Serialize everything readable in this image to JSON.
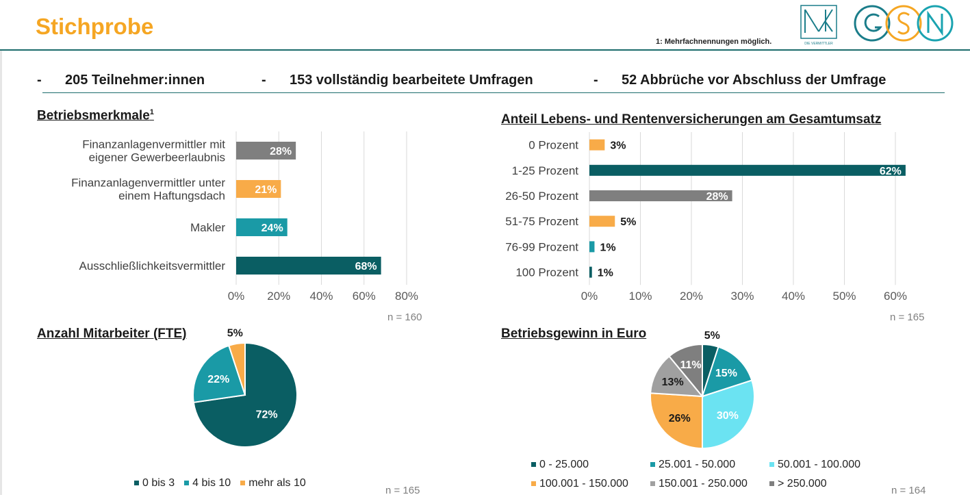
{
  "header": {
    "title": "Stichprobe",
    "footnote": "1: Mehrfachnennungen möglich.",
    "logo_bvk_caption": "DIE VERMITTLER"
  },
  "stats": [
    "205 Teilnehmer:innen",
    "153 vollständig bearbeitete Umfragen",
    "52 Abbrüche vor Abschluss der Umfrage"
  ],
  "stat_dash": "-",
  "colors": {
    "teal_dark": "#0a5e63",
    "teal": "#1a9aa6",
    "light_blue": "#6be3f2",
    "orange": "#f8ab48",
    "gray": "#7f7f7f",
    "gray_light": "#a0a0a0",
    "title_orange": "#f5a623"
  },
  "charts": {
    "betriebsmerkmale": {
      "title": "Betriebsmerkmale",
      "title_sup": "1",
      "n": "n = 160"
    },
    "anteil": {
      "title": "Anteil Lebens- und Rentenversicherungen am Gesamtumsatz",
      "n": "n = 165"
    },
    "mitarbeiter": {
      "title": "Anzahl Mitarbeiter (FTE)",
      "n": "n = 165"
    },
    "gewinn": {
      "title": "Betriebsgewinn in Euro",
      "n": "n = 164"
    }
  },
  "chart_data": [
    {
      "id": "betriebsmerkmale",
      "type": "bar",
      "orientation": "horizontal",
      "categories": [
        [
          "Finanzanlagenvermittler mit",
          "eigener Gewerbeerlaubnis"
        ],
        [
          "Finanzanlagenvermittler unter",
          "einem Haftungsdach"
        ],
        [
          "Makler"
        ],
        [
          "Ausschließlichkeitsvermittler"
        ]
      ],
      "values": [
        28,
        21,
        24,
        68
      ],
      "labels": [
        "28%",
        "21%",
        "24%",
        "68%"
      ],
      "bar_colors": [
        "#7f7f7f",
        "#f8ab48",
        "#1a9aa6",
        "#0a5e63"
      ],
      "xlim": [
        0,
        80
      ],
      "xticks": [
        0,
        20,
        40,
        60,
        80
      ],
      "xtick_labels": [
        "0%",
        "20%",
        "40%",
        "60%",
        "80%"
      ],
      "grid": true
    },
    {
      "id": "anteil",
      "type": "bar",
      "orientation": "horizontal",
      "categories": [
        "0 Prozent",
        "1-25 Prozent",
        "26-50 Prozent",
        "51-75 Prozent",
        "76-99 Prozent",
        "100 Prozent"
      ],
      "values": [
        3,
        62,
        28,
        5,
        1,
        0.5
      ],
      "labels": [
        "3%",
        "62%",
        "28%",
        "5%",
        "1%",
        "1%"
      ],
      "bar_colors": [
        "#f8ab48",
        "#0a5e63",
        "#7f7f7f",
        "#f8ab48",
        "#1a9aa6",
        "#0a5e63"
      ],
      "label_inside": [
        false,
        true,
        true,
        false,
        false,
        false
      ],
      "xlim": [
        0,
        60
      ],
      "xticks": [
        0,
        10,
        20,
        30,
        40,
        50,
        60
      ],
      "xtick_labels": [
        "0%",
        "10%",
        "20%",
        "30%",
        "40%",
        "50%",
        "60%"
      ],
      "grid": true
    },
    {
      "id": "mitarbeiter",
      "type": "pie",
      "categories": [
        "0 bis 3",
        "4 bis 10",
        "mehr als 10"
      ],
      "values": [
        72,
        22,
        5
      ],
      "labels": [
        "72%",
        "22%",
        "5%"
      ],
      "colors": [
        "#0a5e63",
        "#1a9aa6",
        "#f8ab48"
      ],
      "legend": "bottom"
    },
    {
      "id": "gewinn",
      "type": "pie",
      "categories": [
        "0 - 25.000",
        "25.001 - 50.000",
        "50.001 - 100.000",
        "100.001 - 150.000",
        "150.001 - 250.000",
        "> 250.000"
      ],
      "values": [
        5,
        15,
        30,
        26,
        13,
        11
      ],
      "labels": [
        "5%",
        "15%",
        "30%",
        "26%",
        "13%",
        "11%"
      ],
      "colors": [
        "#0a5e63",
        "#1a9aa6",
        "#6be3f2",
        "#f8ab48",
        "#a0a0a0",
        "#7f7f7f"
      ],
      "legend": "bottom"
    }
  ]
}
